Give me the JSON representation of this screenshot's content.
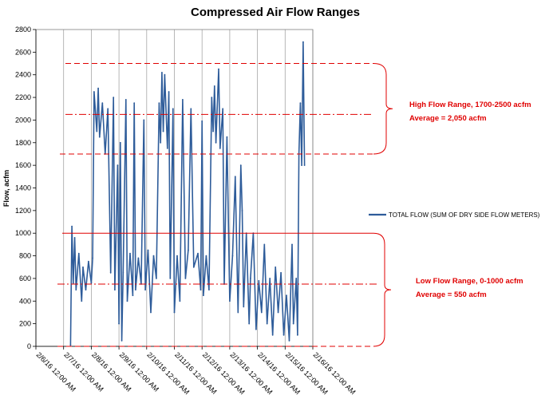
{
  "chart_data": {
    "type": "line",
    "title": "Compressed Air Flow Ranges",
    "xlabel": "",
    "ylabel": "Flow, acfm",
    "ylim": [
      0,
      2800
    ],
    "yticks": [
      0,
      200,
      400,
      600,
      800,
      1000,
      1200,
      1400,
      1600,
      1800,
      2000,
      2200,
      2400,
      2600,
      2800
    ],
    "xlim": [
      "2/6/16 12:00 AM",
      "2/16/16 12:00 AM"
    ],
    "xticks": [
      "2/6/16 12:00 AM",
      "2/7/16 12:00 AM",
      "2/8/16 12:00 AM",
      "2/9/16 12:00 AM",
      "2/10/16 12:00 AM",
      "2/11/16 12:00 AM",
      "2/12/16 12:00 AM",
      "2/13/16 12:00 AM",
      "2/14/16 12:00 AM",
      "2/15/16 12:00 AM",
      "2/16/16 12:00 AM"
    ],
    "grid": "vertical",
    "legend": "right",
    "series": [
      {
        "name": "TOTAL FLOW (SUM OF DRY SIDE FLOW METERS)",
        "color": "#2e5c9a",
        "x_unit": "days after 2/6/16 12:00 AM",
        "points": [
          [
            1.25,
            10
          ],
          [
            1.3,
            1060
          ],
          [
            1.35,
            560
          ],
          [
            1.4,
            960
          ],
          [
            1.45,
            500
          ],
          [
            1.55,
            820
          ],
          [
            1.65,
            400
          ],
          [
            1.7,
            700
          ],
          [
            1.8,
            500
          ],
          [
            1.9,
            750
          ],
          [
            2.0,
            560
          ],
          [
            2.05,
            780
          ],
          [
            2.1,
            2250
          ],
          [
            2.2,
            1900
          ],
          [
            2.25,
            2280
          ],
          [
            2.3,
            1850
          ],
          [
            2.4,
            2150
          ],
          [
            2.5,
            1700
          ],
          [
            2.6,
            2100
          ],
          [
            2.7,
            650
          ],
          [
            2.8,
            2200
          ],
          [
            2.85,
            500
          ],
          [
            2.95,
            1600
          ],
          [
            3.0,
            200
          ],
          [
            3.05,
            1800
          ],
          [
            3.1,
            50
          ],
          [
            3.15,
            650
          ],
          [
            3.25,
            2180
          ],
          [
            3.3,
            400
          ],
          [
            3.4,
            820
          ],
          [
            3.5,
            450
          ],
          [
            3.55,
            2150
          ],
          [
            3.6,
            500
          ],
          [
            3.7,
            780
          ],
          [
            3.8,
            550
          ],
          [
            3.9,
            2000
          ],
          [
            3.95,
            500
          ],
          [
            4.05,
            850
          ],
          [
            4.15,
            300
          ],
          [
            4.25,
            800
          ],
          [
            4.35,
            600
          ],
          [
            4.45,
            2150
          ],
          [
            4.5,
            1800
          ],
          [
            4.55,
            2420
          ],
          [
            4.6,
            1900
          ],
          [
            4.65,
            2400
          ],
          [
            4.75,
            1750
          ],
          [
            4.8,
            2250
          ],
          [
            4.85,
            600
          ],
          [
            4.95,
            2100
          ],
          [
            5.0,
            300
          ],
          [
            5.1,
            800
          ],
          [
            5.2,
            400
          ],
          [
            5.3,
            2180
          ],
          [
            5.4,
            600
          ],
          [
            5.5,
            850
          ],
          [
            5.6,
            2100
          ],
          [
            5.7,
            700
          ],
          [
            5.85,
            820
          ],
          [
            5.95,
            500
          ],
          [
            6.0,
            1990
          ],
          [
            6.05,
            450
          ],
          [
            6.15,
            800
          ],
          [
            6.25,
            500
          ],
          [
            6.35,
            2200
          ],
          [
            6.4,
            1900
          ],
          [
            6.45,
            2300
          ],
          [
            6.5,
            1800
          ],
          [
            6.6,
            2450
          ],
          [
            6.65,
            1750
          ],
          [
            6.75,
            2100
          ],
          [
            6.8,
            550
          ],
          [
            6.9,
            1850
          ],
          [
            7.0,
            400
          ],
          [
            7.1,
            800
          ],
          [
            7.2,
            1500
          ],
          [
            7.3,
            300
          ],
          [
            7.4,
            1600
          ],
          [
            7.45,
            1200
          ],
          [
            7.5,
            350
          ],
          [
            7.6,
            1000
          ],
          [
            7.7,
            200
          ],
          [
            7.75,
            600
          ],
          [
            7.85,
            1000
          ],
          [
            7.95,
            150
          ],
          [
            8.05,
            580
          ],
          [
            8.15,
            300
          ],
          [
            8.25,
            900
          ],
          [
            8.35,
            200
          ],
          [
            8.45,
            600
          ],
          [
            8.55,
            100
          ],
          [
            8.65,
            700
          ],
          [
            8.75,
            300
          ],
          [
            8.85,
            650
          ],
          [
            8.95,
            100
          ],
          [
            9.05,
            450
          ],
          [
            9.15,
            50
          ],
          [
            9.25,
            900
          ],
          [
            9.3,
            200
          ],
          [
            9.4,
            600
          ],
          [
            9.45,
            100
          ],
          [
            9.5,
            1700
          ],
          [
            9.55,
            2150
          ],
          [
            9.6,
            1600
          ],
          [
            9.65,
            2690
          ],
          [
            9.7,
            1600
          ]
        ]
      }
    ],
    "annotations": [
      {
        "text_lines": [
          "High Flow Range, 1700-2500 acfm",
          "Average = 2,050 acfm"
        ],
        "range": [
          1700,
          2500
        ],
        "average": 2050,
        "color": "#e00000"
      },
      {
        "text_lines": [
          "Low Flow Range, 0-1000 acfm",
          "Average = 550 acfm"
        ],
        "range": [
          0,
          1000
        ],
        "average": 550,
        "color": "#e00000"
      }
    ]
  }
}
